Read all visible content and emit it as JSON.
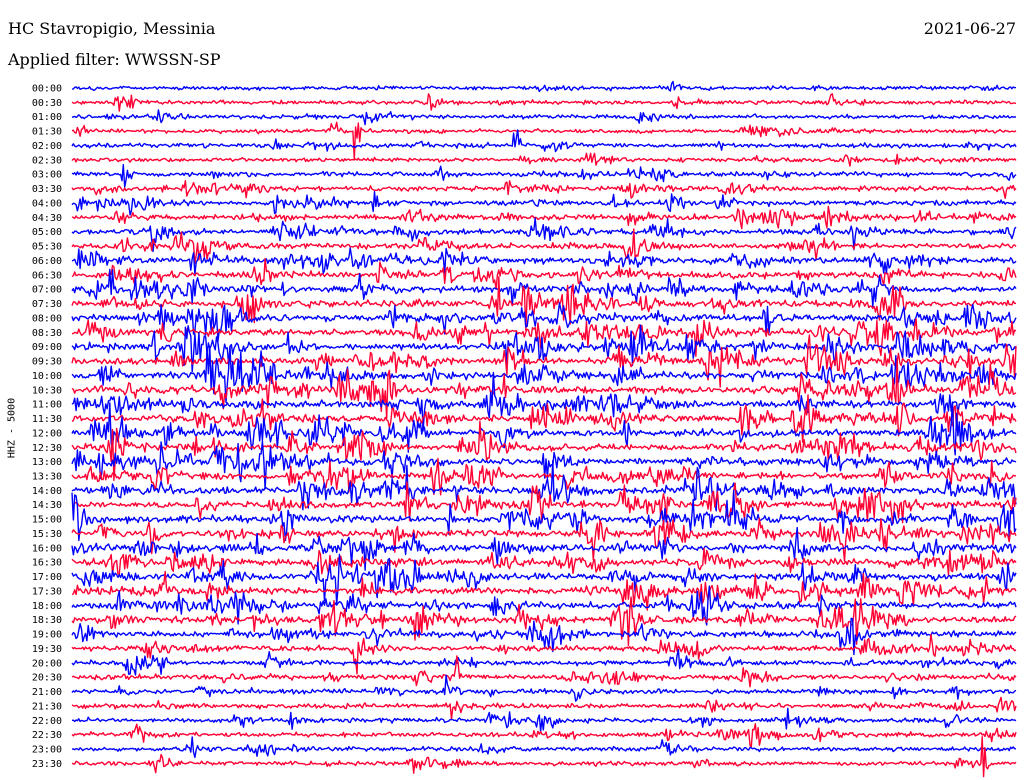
{
  "header": {
    "station": "HC Stavropigio, Messinia",
    "filter_label": "Applied filter: WWSSN-SP",
    "date": "2021-06-27"
  },
  "chart_data": {
    "type": "line",
    "ylabel": "HHZ - 5000",
    "row_labels": [
      "00:00",
      "00:30",
      "01:00",
      "01:30",
      "02:00",
      "02:30",
      "03:00",
      "03:30",
      "04:00",
      "04:30",
      "05:00",
      "05:30",
      "06:00",
      "06:30",
      "07:00",
      "07:30",
      "08:00",
      "08:30",
      "09:00",
      "09:30",
      "10:00",
      "10:30",
      "11:00",
      "11:30",
      "12:00",
      "12:30",
      "13:00",
      "13:30",
      "14:00",
      "14:30",
      "15:00",
      "15:30",
      "16:00",
      "16:30",
      "17:00",
      "17:30",
      "18:00",
      "18:30",
      "19:00",
      "19:30",
      "20:00",
      "20:30",
      "21:00",
      "21:30",
      "22:00",
      "22:30",
      "23:00",
      "23:30"
    ],
    "row_colors": [
      "#0000ff",
      "#ff0033"
    ],
    "activity_by_row": [
      0.15,
      0.18,
      0.12,
      0.16,
      0.25,
      0.2,
      0.3,
      0.35,
      0.45,
      0.5,
      0.55,
      0.55,
      0.65,
      0.7,
      0.8,
      0.8,
      0.85,
      0.85,
      0.9,
      0.9,
      0.9,
      0.9,
      0.85,
      0.85,
      0.85,
      0.8,
      0.85,
      0.85,
      0.85,
      0.8,
      0.85,
      0.85,
      0.8,
      0.8,
      0.8,
      0.8,
      0.75,
      0.75,
      0.6,
      0.45,
      0.4,
      0.4,
      0.35,
      0.3,
      0.3,
      0.25,
      0.2,
      0.2
    ],
    "grid": false
  }
}
